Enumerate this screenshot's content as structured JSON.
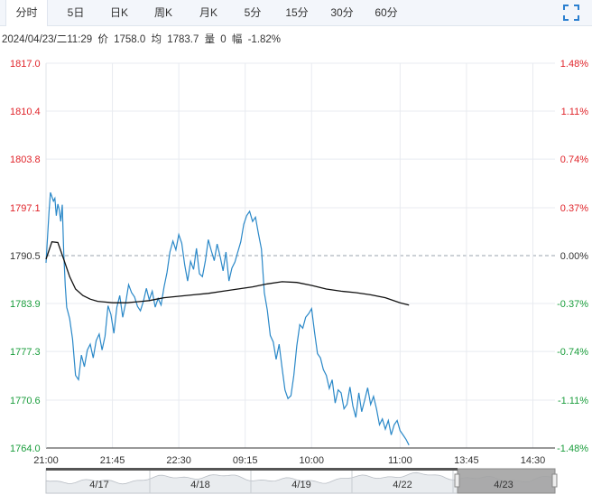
{
  "tabs": [
    {
      "label": "分时",
      "active": true
    },
    {
      "label": "5日",
      "active": false
    },
    {
      "label": "日K",
      "active": false
    },
    {
      "label": "周K",
      "active": false
    },
    {
      "label": "月K",
      "active": false
    },
    {
      "label": "5分",
      "active": false
    },
    {
      "label": "15分",
      "active": false
    },
    {
      "label": "30分",
      "active": false
    },
    {
      "label": "60分",
      "active": false
    }
  ],
  "info": {
    "datetime": "2024/04/23/二11:29",
    "price_label": "价",
    "price": "1758.0",
    "avg_label": "均",
    "avg": "1783.7",
    "vol_label": "量",
    "vol": "0",
    "chg_label": "幅",
    "chg": "-1.82%"
  },
  "colors": {
    "up": "#e0242a",
    "down": "#1a9d3c",
    "neutral": "#333333",
    "price_line": "#2a88c8",
    "avg_line": "#111111",
    "grid": "#e8ebf0"
  },
  "chart_data": {
    "type": "line",
    "reference_price": 1790.5,
    "ylim": [
      1764.0,
      1817.0
    ],
    "y_ticks": [
      "1817.0",
      "1810.4",
      "1803.8",
      "1797.1",
      "1790.5",
      "1783.9",
      "1777.3",
      "1770.6",
      "1764.0"
    ],
    "pct_ticks": [
      "1.48%",
      "1.11%",
      "0.74%",
      "0.37%",
      "0.00%",
      "-0.37%",
      "-0.74%",
      "-1.11%",
      "-1.48%"
    ],
    "x_ticks": [
      "21:00",
      "21:45",
      "22:30",
      "09:15",
      "10:00",
      "11:00",
      "13:45",
      "14:30"
    ],
    "x_tick_index": [
      0,
      45,
      90,
      135,
      180,
      240,
      285,
      330
    ],
    "total_minutes": 345,
    "series": [
      {
        "type": "price",
        "x": [
          0,
          2,
          3,
          5,
          6,
          7,
          8,
          9,
          10,
          11,
          12,
          13,
          14,
          16,
          18,
          20,
          22,
          24,
          26,
          28,
          30,
          32,
          34,
          36,
          38,
          40,
          42,
          44,
          46,
          48,
          50,
          52,
          54,
          56,
          58,
          60,
          62,
          64,
          66,
          68,
          70,
          72,
          74,
          76,
          78,
          80,
          82,
          84,
          86,
          88,
          90,
          92,
          94,
          96,
          98,
          100,
          102,
          104,
          106,
          108,
          110,
          112,
          114,
          116,
          118,
          120,
          122,
          124,
          126,
          128,
          130,
          132,
          134,
          136,
          138,
          140,
          142,
          144,
          146,
          148,
          150,
          152,
          154,
          156,
          158,
          160,
          162,
          164,
          166,
          168,
          170,
          172,
          174,
          176,
          178,
          180,
          182,
          184,
          186,
          188,
          190,
          192,
          194,
          196,
          198,
          200,
          202,
          204,
          206,
          208,
          210,
          212,
          214,
          216,
          218,
          220,
          222,
          224,
          226,
          228,
          230,
          232,
          234,
          236,
          238,
          240,
          242,
          244,
          246
        ],
        "values": [
          1789.5,
          1796.5,
          1799.2,
          1798.0,
          1798.4,
          1796.0,
          1797.6,
          1796.8,
          1795.2,
          1797.5,
          1791.0,
          1786.4,
          1783.4,
          1781.8,
          1779.0,
          1774.0,
          1773.4,
          1776.8,
          1775.2,
          1777.5,
          1778.3,
          1776.4,
          1778.8,
          1779.7,
          1777.5,
          1779.4,
          1783.6,
          1782.4,
          1779.8,
          1783.4,
          1785.0,
          1782.0,
          1784.0,
          1786.5,
          1785.4,
          1784.8,
          1783.5,
          1782.9,
          1784.2,
          1786.0,
          1784.4,
          1785.6,
          1783.4,
          1784.6,
          1783.7,
          1786.2,
          1788.2,
          1791.0,
          1792.5,
          1791.3,
          1793.4,
          1792.2,
          1789.2,
          1787.0,
          1789.7,
          1788.6,
          1791.5,
          1788.0,
          1787.6,
          1789.8,
          1792.7,
          1791.2,
          1789.8,
          1792.1,
          1790.4,
          1788.4,
          1791.0,
          1787.0,
          1788.8,
          1789.6,
          1791.0,
          1792.4,
          1794.8,
          1796.0,
          1796.6,
          1795.2,
          1795.8,
          1793.5,
          1791.4,
          1785.4,
          1783.0,
          1779.5,
          1778.6,
          1776.2,
          1778.3,
          1775.0,
          1772.0,
          1770.8,
          1771.2,
          1774.0,
          1778.1,
          1781.0,
          1780.5,
          1782.0,
          1782.5,
          1783.2,
          1780.0,
          1777.0,
          1776.4,
          1774.8,
          1774.0,
          1772.2,
          1773.4,
          1770.2,
          1772.0,
          1771.6,
          1769.4,
          1770.0,
          1772.4,
          1769.8,
          1768.2,
          1771.6,
          1769.0,
          1770.6,
          1772.3,
          1770.0,
          1771.1,
          1769.4,
          1767.2,
          1768.0,
          1766.6,
          1767.8,
          1765.8,
          1767.2,
          1767.8,
          1766.4,
          1765.8,
          1765.2,
          1764.4
        ]
      },
      {
        "type": "average",
        "x": [
          0,
          4,
          8,
          12,
          16,
          20,
          25,
          30,
          35,
          40,
          45,
          50,
          55,
          60,
          65,
          70,
          75,
          80,
          90,
          100,
          110,
          120,
          130,
          140,
          150,
          160,
          170,
          180,
          190,
          200,
          210,
          220,
          230,
          240,
          246
        ],
        "values": [
          1790.0,
          1792.4,
          1792.3,
          1790.0,
          1787.6,
          1785.9,
          1785.0,
          1784.5,
          1784.2,
          1784.1,
          1784.0,
          1784.0,
          1784.0,
          1784.1,
          1784.2,
          1784.3,
          1784.5,
          1784.7,
          1784.9,
          1785.1,
          1785.3,
          1785.6,
          1785.9,
          1786.2,
          1786.6,
          1786.9,
          1786.8,
          1786.4,
          1785.9,
          1785.6,
          1785.4,
          1785.1,
          1784.7,
          1784.0,
          1783.7
        ]
      }
    ]
  },
  "navigator": {
    "dates": [
      "4/17",
      "4/18",
      "4/19",
      "4/22",
      "4/23"
    ]
  }
}
